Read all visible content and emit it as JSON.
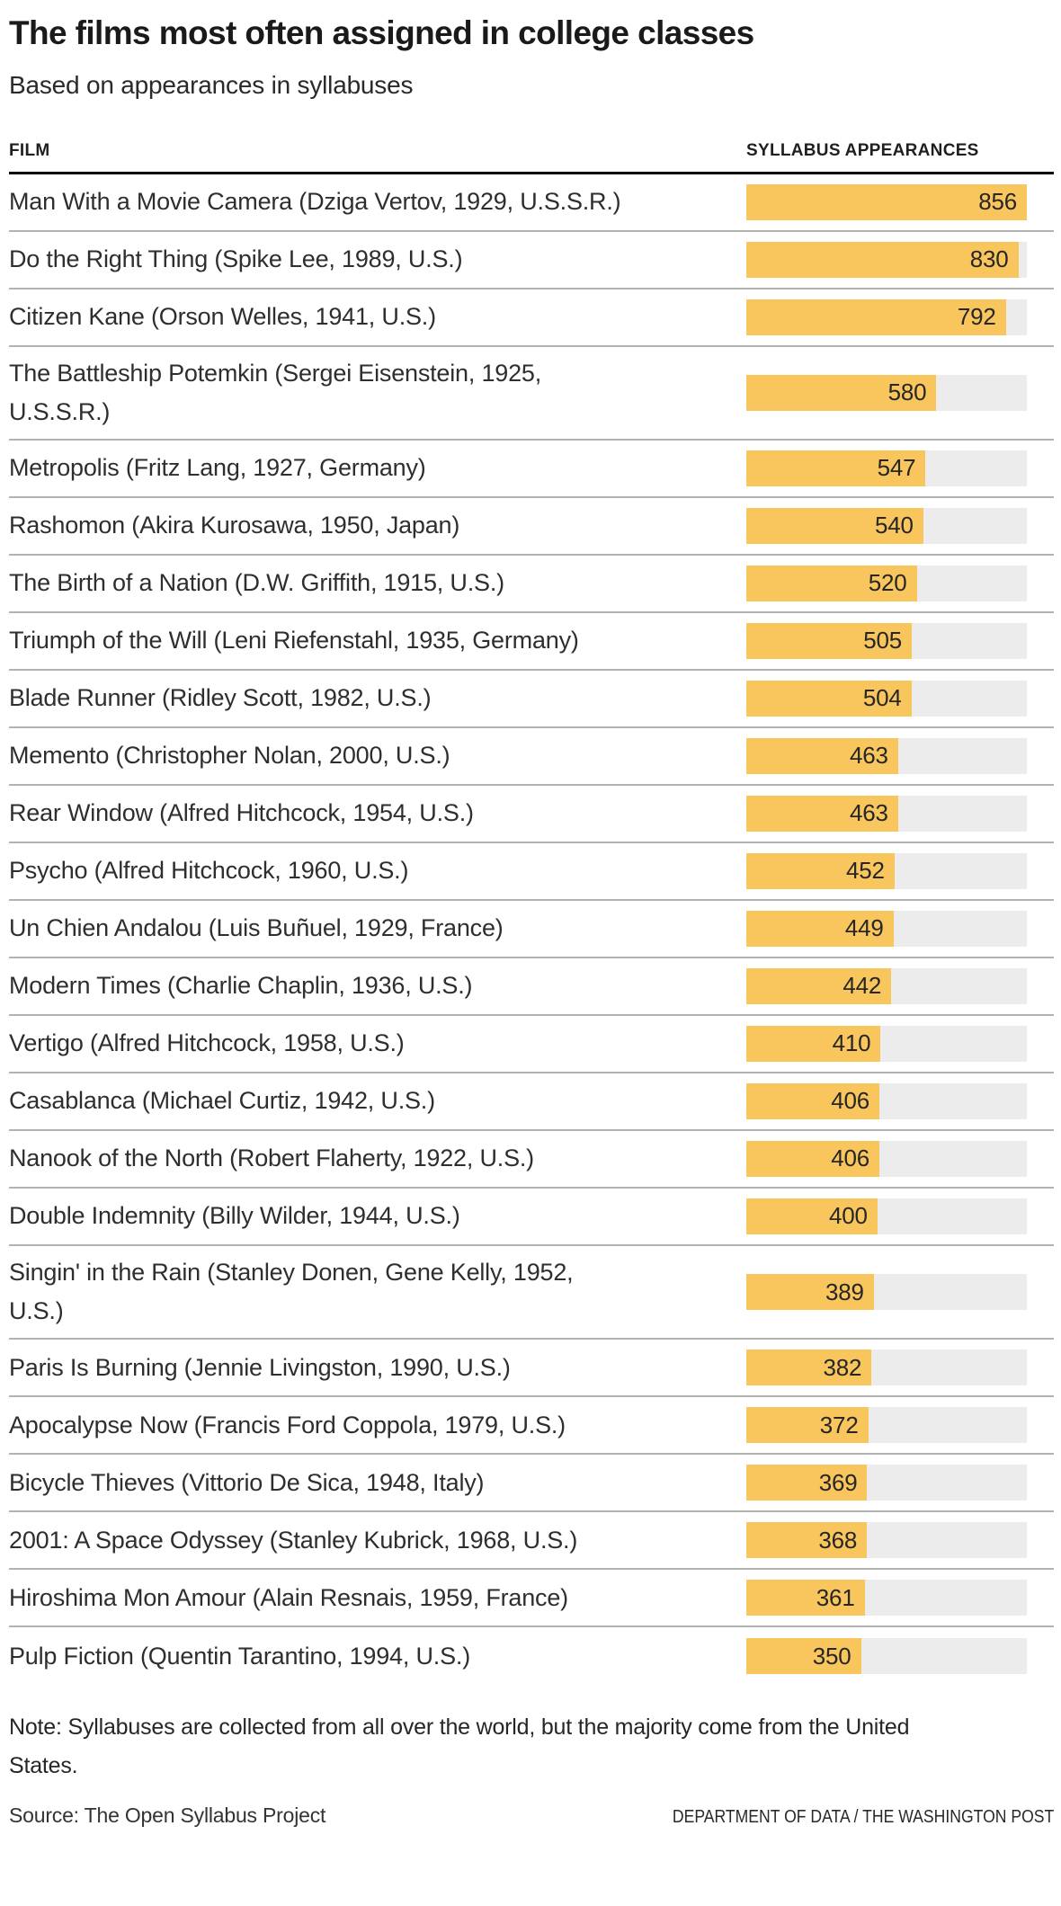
{
  "header": {
    "title": "The films most often assigned in college classes",
    "subtitle": "Based on appearances in syllabuses"
  },
  "table": {
    "columns": {
      "film": "FILM",
      "value": "SYLLABUS APPEARANCES"
    }
  },
  "chart_data": {
    "type": "bar",
    "orientation": "horizontal",
    "title": "The films most often assigned in college classes",
    "subtitle": "Based on appearances in syllabuses",
    "category_label": "FILM",
    "value_label": "SYLLABUS APPEARANCES",
    "value_axis_range": [
      0,
      856
    ],
    "grid": false,
    "legend": false,
    "categories": [
      "Man With a Movie Camera (Dziga Vertov, 1929, U.S.S.R.)",
      "Do the Right Thing (Spike Lee, 1989, U.S.)",
      "Citizen Kane (Orson Welles, 1941, U.S.)",
      "The Battleship Potemkin (Sergei Eisenstein, 1925,\nU.S.S.R.)",
      "Metropolis (Fritz Lang, 1927, Germany)",
      "Rashomon (Akira Kurosawa, 1950, Japan)",
      "The Birth of a Nation (D.W. Griffith, 1915, U.S.)",
      "Triumph of the Will (Leni Riefenstahl, 1935, Germany)",
      "Blade Runner (Ridley Scott, 1982, U.S.)",
      "Memento (Christopher Nolan, 2000, U.S.)",
      "Rear Window (Alfred Hitchcock, 1954, U.S.)",
      "Psycho (Alfred Hitchcock, 1960, U.S.)",
      "Un Chien Andalou (Luis Buñuel, 1929, France)",
      "Modern Times (Charlie Chaplin, 1936, U.S.)",
      "Vertigo (Alfred Hitchcock, 1958, U.S.)",
      "Casablanca (Michael Curtiz, 1942, U.S.)",
      "Nanook of the North (Robert Flaherty, 1922, U.S.)",
      "Double Indemnity (Billy Wilder, 1944, U.S.)",
      "Singin' in the Rain (Stanley Donen, Gene Kelly, 1952,\nU.S.)",
      "Paris Is Burning (Jennie Livingston, 1990, U.S.)",
      "Apocalypse Now (Francis Ford Coppola, 1979, U.S.)",
      "Bicycle Thieves (Vittorio De Sica, 1948, Italy)",
      "2001: A Space Odyssey (Stanley Kubrick, 1968, U.S.)",
      "Hiroshima Mon Amour (Alain Resnais, 1959, France)",
      "Pulp Fiction (Quentin Tarantino, 1994, U.S.)"
    ],
    "values": [
      856,
      830,
      792,
      580,
      547,
      540,
      520,
      505,
      504,
      463,
      463,
      452,
      449,
      442,
      410,
      406,
      406,
      400,
      389,
      382,
      372,
      369,
      368,
      361,
      350
    ],
    "max_value": 856
  },
  "footer": {
    "note": "Note: Syllabuses are collected from all over the world, but the majority come from the United\nStates.",
    "source": "Source: The Open Syllabus Project",
    "credit": "DEPARTMENT OF DATA / THE WASHINGTON POST"
  },
  "colors": {
    "bar": "#f8c65c",
    "track": "#ececec",
    "header_rule": "#000000",
    "row_separator": "#b3b3b3",
    "title_text": "#1a1a1a",
    "body_text": "#2e2e2e"
  }
}
